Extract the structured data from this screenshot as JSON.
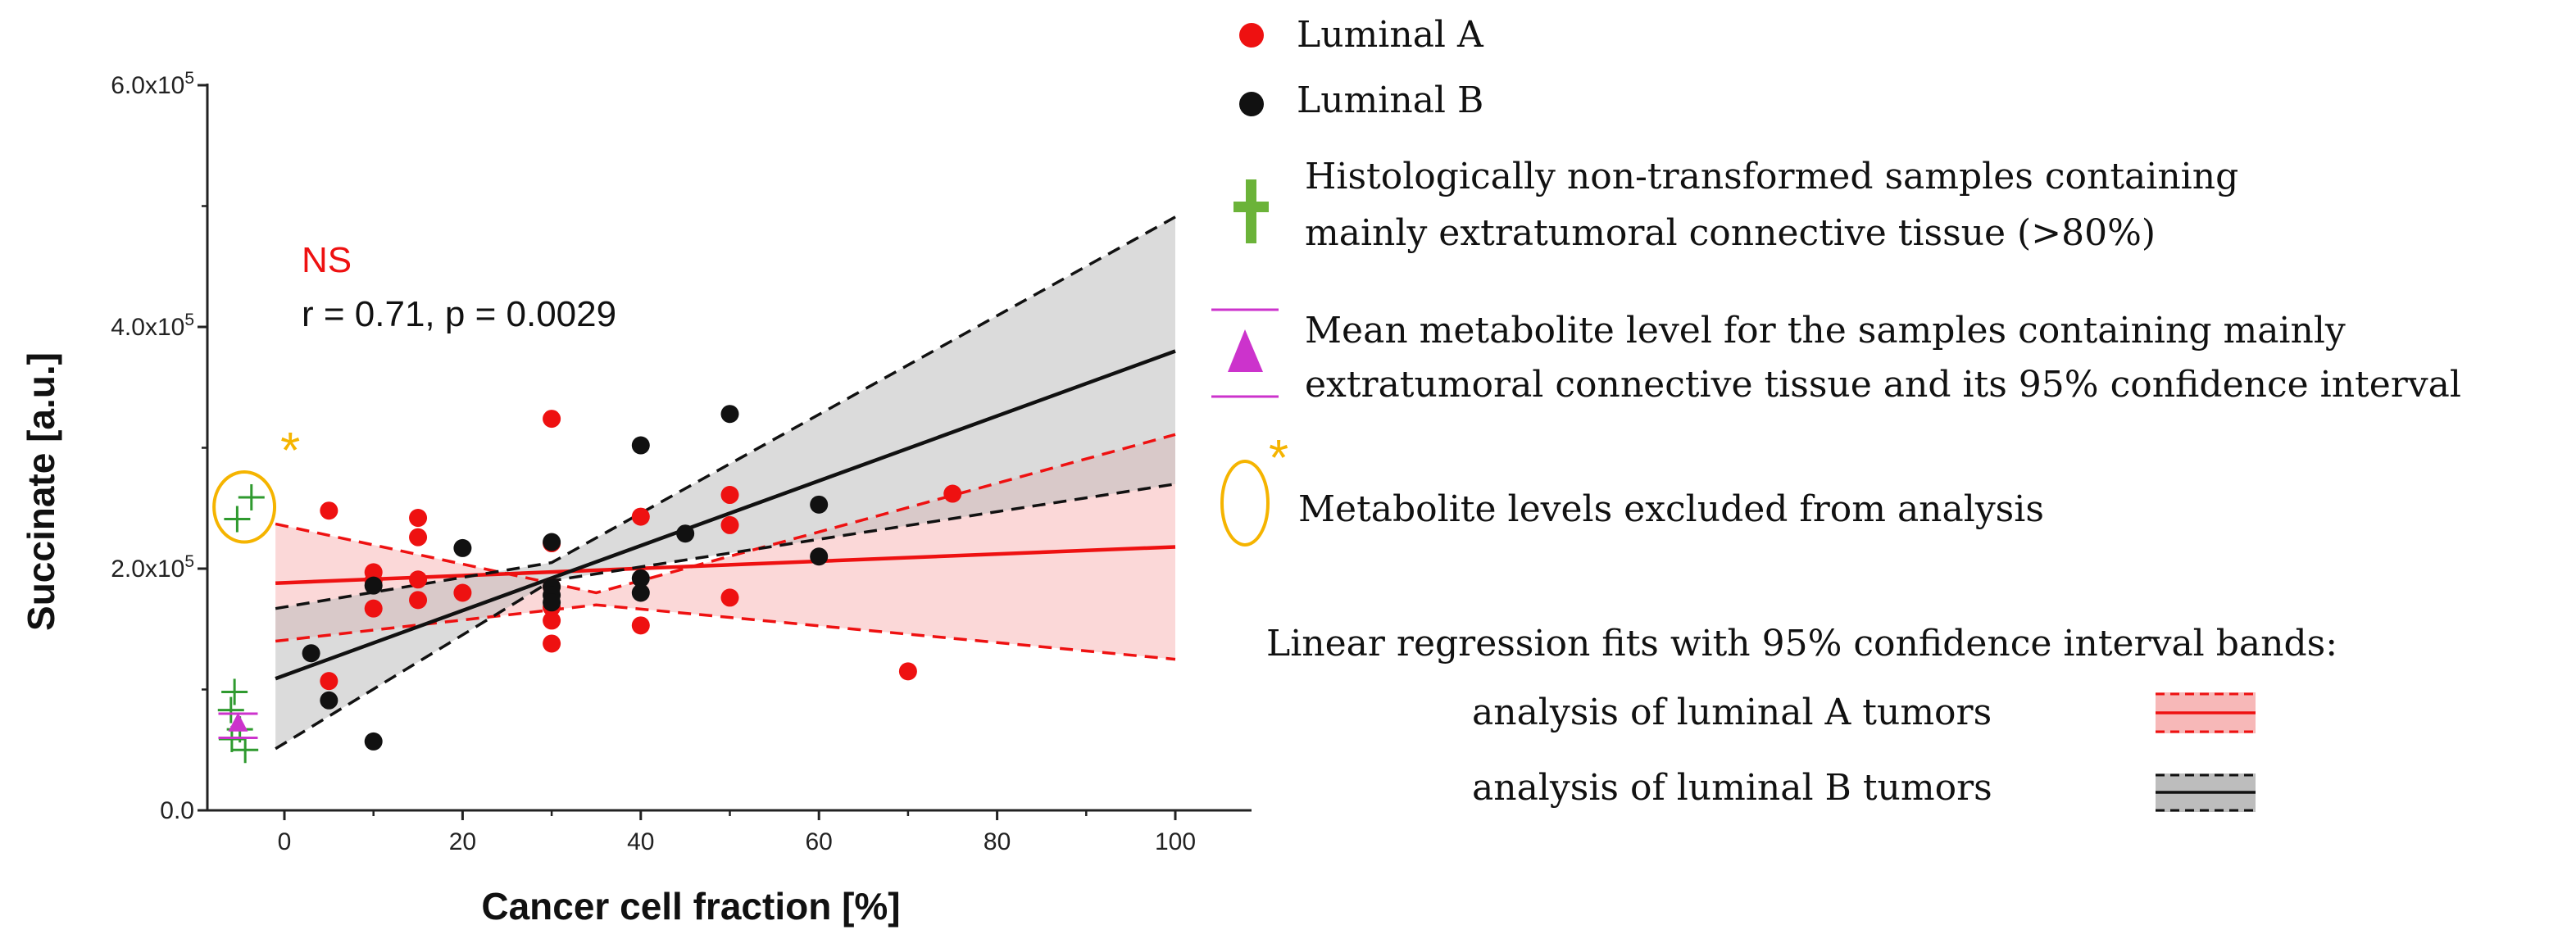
{
  "chart_data": {
    "type": "scatter",
    "xlabel": "Cancer cell fraction [%]",
    "ylabel": "Succinate [a.u.]",
    "xlim": [
      -8,
      108
    ],
    "ylim": [
      0,
      600000
    ],
    "xticks": [
      0,
      20,
      40,
      60,
      80,
      100
    ],
    "xtick_labels": [
      "0",
      "20",
      "40",
      "60",
      "80",
      "100"
    ],
    "yticks": [
      0,
      200000,
      400000,
      600000
    ],
    "ytick_labels": [
      {
        "mantissa": "0.0",
        "exponent": ""
      },
      {
        "mantissa": "2.0x10",
        "exponent": "5"
      },
      {
        "mantissa": "4.0x10",
        "exponent": "5"
      },
      {
        "mantissa": "6.0x10",
        "exponent": "5"
      }
    ],
    "series": [
      {
        "name": "Luminal A",
        "color": "#ee1111",
        "points": [
          [
            5,
            248000
          ],
          [
            5,
            107000
          ],
          [
            10,
            197000
          ],
          [
            10,
            190000
          ],
          [
            10,
            167000
          ],
          [
            15,
            242000
          ],
          [
            15,
            226000
          ],
          [
            15,
            191000
          ],
          [
            15,
            174000
          ],
          [
            20,
            180000
          ],
          [
            30,
            324000
          ],
          [
            30,
            221000
          ],
          [
            30,
            185000
          ],
          [
            30,
            168000
          ],
          [
            30,
            157000
          ],
          [
            30,
            138000
          ],
          [
            40,
            243000
          ],
          [
            40,
            153000
          ],
          [
            50,
            261000
          ],
          [
            50,
            236000
          ],
          [
            50,
            176000
          ],
          [
            70,
            115000
          ],
          [
            75,
            262000
          ]
        ]
      },
      {
        "name": "Luminal B",
        "color": "#111111",
        "points": [
          [
            3,
            130000
          ],
          [
            5,
            91000
          ],
          [
            10,
            57000
          ],
          [
            10,
            186000
          ],
          [
            20,
            217000
          ],
          [
            30,
            222000
          ],
          [
            30,
            185000
          ],
          [
            30,
            178000
          ],
          [
            30,
            172000
          ],
          [
            40,
            302000
          ],
          [
            40,
            192000
          ],
          [
            40,
            180000
          ],
          [
            45,
            229000
          ],
          [
            50,
            328000
          ],
          [
            60,
            253000
          ],
          [
            60,
            210000
          ]
        ]
      },
      {
        "name": "Histologically non-transformed samples containing mainly extratumoral connective tissue (>80%)",
        "color": "#2f9a2f",
        "marker": "plus",
        "points": [
          [
            -5.3,
            241000
          ],
          [
            -3.7,
            259000
          ],
          [
            -5.6,
            98000
          ],
          [
            -6.0,
            83000
          ],
          [
            -5.0,
            67000
          ],
          [
            -5.9,
            59000
          ],
          [
            -4.4,
            50000
          ]
        ]
      }
    ],
    "mean_marker": {
      "name": "Mean metabolite level for the samples containing mainly extratumoral connective tissue and its 95% confidence interval",
      "x": -5.2,
      "y": 72000,
      "ci_low": 60000,
      "ci_high": 80000,
      "color": "#cc33cc"
    },
    "excluded": {
      "label": "Metabolite levels excluded from analysis",
      "center": [
        -4.5,
        251000
      ],
      "radius_x": 3.4,
      "radius_y": 29000,
      "color": "#f5b400"
    },
    "fits": [
      {
        "name": "analysis of luminal A tumors",
        "color": "#ee1111",
        "band_color": "#f7b8b8",
        "x_range": [
          -1,
          100
        ],
        "line": [
          188000,
          218000
        ],
        "ci_upper": [
          [
            -1,
            237000
          ],
          [
            35,
            180000
          ],
          [
            100,
            311000
          ]
        ],
        "ci_lower": [
          [
            -1,
            140000
          ],
          [
            35,
            170000
          ],
          [
            100,
            125000
          ]
        ]
      },
      {
        "name": "analysis of luminal B tumors",
        "color": "#111111",
        "band_color": "#bdbdbd",
        "x_range": [
          -1,
          100
        ],
        "line": [
          109000,
          380000
        ],
        "ci_upper": [
          [
            -1,
            167000
          ],
          [
            30,
            205000
          ],
          [
            100,
            491000
          ]
        ],
        "ci_lower": [
          [
            -1,
            51000
          ],
          [
            30,
            190000
          ],
          [
            100,
            270000
          ]
        ]
      }
    ],
    "annotations": [
      {
        "text": "NS",
        "color": "#ee1111"
      },
      {
        "text": "r = 0.71, p = 0.0029",
        "color": "#111111"
      }
    ],
    "asterisk": "*"
  },
  "legend": {
    "luminal_a": "Luminal A",
    "luminal_b": "Luminal B",
    "nontransformed_line1": "Histologically non-transformed samples containing",
    "nontransformed_line2": "mainly extratumoral connective tissue (>80%)",
    "mean_line1": "Mean metabolite level for the samples containing mainly",
    "mean_line2": "extratumoral connective tissue and its 95% confidence interval",
    "excluded": "Metabolite levels excluded from analysis",
    "fits_heading": "Linear regression fits with 95% confidence interval bands:",
    "fit_a": "analysis of luminal A tumors",
    "fit_b": "analysis of luminal B tumors",
    "asterisk": "*"
  },
  "colors": {
    "red": "#ee1111",
    "black": "#111111",
    "green": "#2f9a2f",
    "magenta": "#cc33cc",
    "gold": "#f5b400",
    "pink_band": "#f7b8b8",
    "grey_band": "#bdbdbd"
  }
}
